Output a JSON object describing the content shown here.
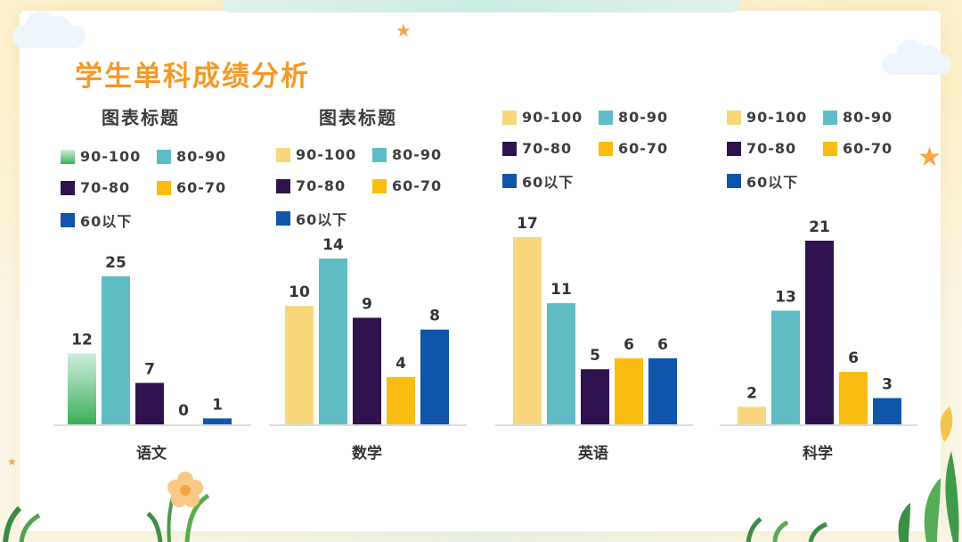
{
  "page": {
    "title": "学生单科成绩分析"
  },
  "colors": {
    "90-100": "#f8d77a",
    "80-90": "#5fbcc4",
    "70-80": "#30124e",
    "60-70": "#fbbc12",
    "below60": "#0f55aa",
    "green_top": "#cfeedd",
    "green_bottom": "#3aaf5a",
    "title": "#f29a28",
    "axis": "#cfcfcf"
  },
  "legend_labels": [
    "90-100",
    "80-90",
    "70-80",
    "60-70",
    "60以下"
  ],
  "chart_data": [
    {
      "type": "bar",
      "title": "图表标题",
      "categories": [
        "语文"
      ],
      "series": [
        {
          "name": "90-100",
          "values": [
            12
          ]
        },
        {
          "name": "80-90",
          "values": [
            25
          ]
        },
        {
          "name": "70-80",
          "values": [
            7
          ]
        },
        {
          "name": "60-70",
          "values": [
            0
          ]
        },
        {
          "name": "60以下",
          "values": [
            1
          ]
        }
      ],
      "ylim": [
        0,
        25
      ],
      "grid": false,
      "legend_placement": "top"
    },
    {
      "type": "bar",
      "title": "图表标题",
      "categories": [
        "数学"
      ],
      "series": [
        {
          "name": "90-100",
          "values": [
            10
          ]
        },
        {
          "name": "80-90",
          "values": [
            14
          ]
        },
        {
          "name": "70-80",
          "values": [
            9
          ]
        },
        {
          "name": "60-70",
          "values": [
            4
          ]
        },
        {
          "name": "60以下",
          "values": [
            8
          ]
        }
      ],
      "ylim": [
        0,
        14
      ],
      "grid": false,
      "legend_placement": "top"
    },
    {
      "type": "bar",
      "title": "",
      "categories": [
        "英语"
      ],
      "series": [
        {
          "name": "90-100",
          "values": [
            17
          ]
        },
        {
          "name": "80-90",
          "values": [
            11
          ]
        },
        {
          "name": "70-80",
          "values": [
            5
          ]
        },
        {
          "name": "60-70",
          "values": [
            6
          ]
        },
        {
          "name": "60以下",
          "values": [
            6
          ]
        }
      ],
      "ylim": [
        0,
        17
      ],
      "grid": false,
      "legend_placement": "top"
    },
    {
      "type": "bar",
      "title": "",
      "categories": [
        "科学"
      ],
      "series": [
        {
          "name": "90-100",
          "values": [
            2
          ]
        },
        {
          "name": "80-90",
          "values": [
            13
          ]
        },
        {
          "name": "70-80",
          "values": [
            21
          ]
        },
        {
          "name": "60-70",
          "values": [
            6
          ]
        },
        {
          "name": "60以下",
          "values": [
            3
          ]
        }
      ],
      "ylim": [
        0,
        21
      ],
      "grid": false,
      "legend_placement": "top"
    }
  ]
}
